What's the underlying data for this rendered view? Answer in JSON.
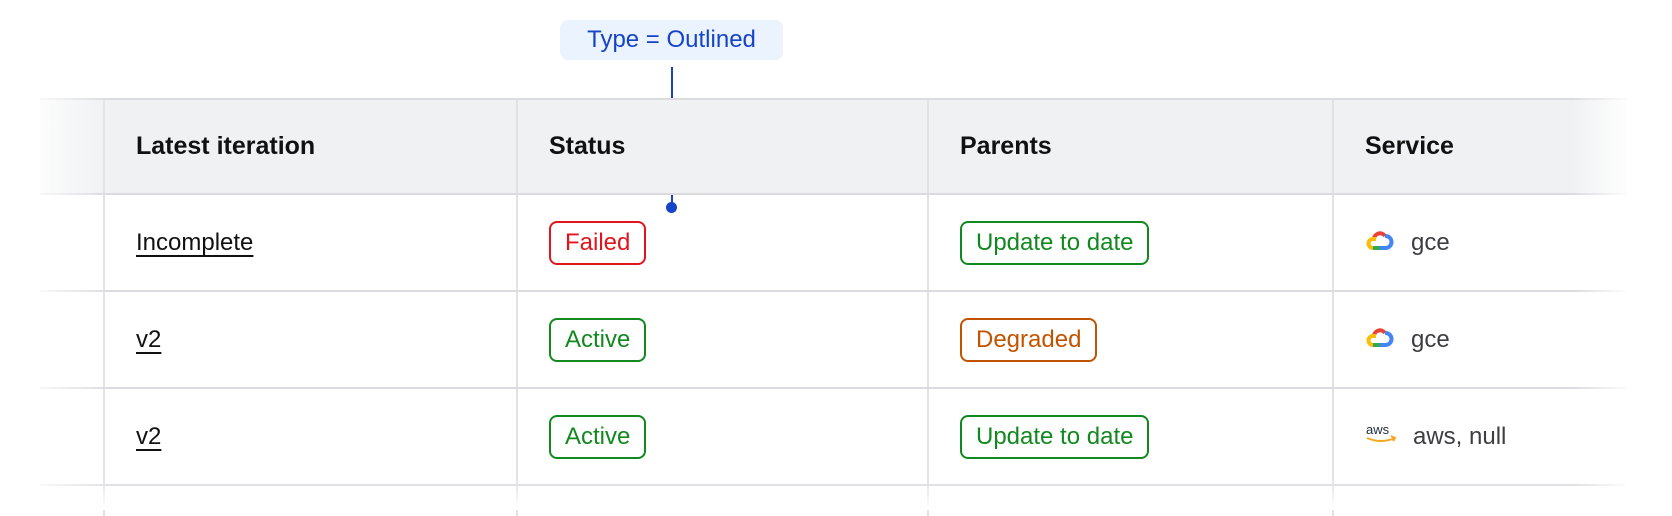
{
  "annotation": {
    "label": "Type = Outlined",
    "color": "#1544c7"
  },
  "table": {
    "columns": [
      "Latest iteration",
      "Status",
      "Parents",
      "Service"
    ],
    "rows": [
      {
        "iteration": "Incomplete",
        "status": {
          "label": "Failed",
          "color": "#e0161e"
        },
        "parents": {
          "label": "Update to date",
          "color": "#12891f"
        },
        "service": {
          "icon": "google-cloud-icon",
          "label": "gce"
        }
      },
      {
        "iteration": "v2",
        "status": {
          "label": "Active",
          "color": "#12891f"
        },
        "parents": {
          "label": "Degraded",
          "color": "#c25400"
        },
        "service": {
          "icon": "google-cloud-icon",
          "label": "gce"
        }
      },
      {
        "iteration": "v2",
        "status": {
          "label": "Active",
          "color": "#12891f"
        },
        "parents": {
          "label": "Update to date",
          "color": "#12891f"
        },
        "service": {
          "icon": "aws-icon",
          "label": "aws, null"
        }
      }
    ]
  }
}
